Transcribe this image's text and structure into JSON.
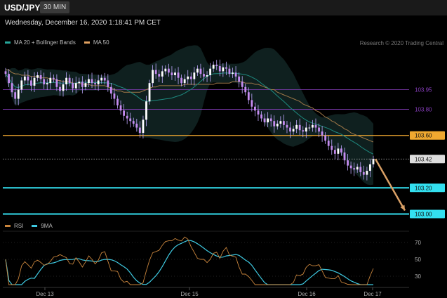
{
  "header": {
    "symbol": "USD/JPY",
    "timeframe": "30 MIN",
    "timestamp": "Wednesday, December 16, 2020 1:18:41 PM CET"
  },
  "legend_main": [
    {
      "label": "MA 20 + Bollinger Bands",
      "color": "#26a69a"
    },
    {
      "label": "MA 50",
      "color": "#e0a060"
    }
  ],
  "legend_rsi": [
    {
      "label": "RSI",
      "color": "#c8843c"
    },
    {
      "label": "9MA",
      "color": "#3ec8e0"
    }
  ],
  "credit": "Research © 2020 Trading Central",
  "chart_data": [
    {
      "type": "candlestick",
      "symbol": "USD/JPY",
      "x_ticks": [
        "Dec 13",
        "Dec 15",
        "Dec 16",
        "Dec 17"
      ],
      "ylim": [
        102.96,
        104.28
      ],
      "levels": [
        {
          "value": 103.95,
          "label": "103.95",
          "color": "#8a3fc0",
          "style": "thin"
        },
        {
          "value": 103.8,
          "label": "103.80",
          "color": "#8a3fc0",
          "style": "thin"
        },
        {
          "value": 103.6,
          "label": "103.60",
          "color": "#f0a830",
          "style": "medium",
          "label_bg": "#f0a830"
        },
        {
          "value": 103.42,
          "label": "103.42",
          "color": "#bbbbbb",
          "style": "dotted",
          "label_bg": "#dddddd"
        },
        {
          "value": 103.2,
          "label": "103.20",
          "color": "#33e0f0",
          "style": "thick",
          "label_bg": "#33e0f0"
        },
        {
          "value": 103.0,
          "label": "103.00",
          "color": "#33e0f0",
          "style": "thick",
          "label_bg": "#33e0f0"
        }
      ],
      "projection_arrow": {
        "from": 103.42,
        "to": 103.0,
        "color": "#d9a066"
      },
      "closes": [
        104.07,
        104.0,
        103.93,
        103.88,
        103.95,
        104.02,
        104.05,
        104.02,
        103.98,
        104.04,
        104.06,
        104.03,
        103.99,
        104.0,
        104.04,
        104.03,
        103.97,
        103.94,
        103.99,
        104.04,
        104.0,
        103.96,
        104.0,
        104.01,
        103.97,
        104.0,
        104.03,
        104.0,
        103.99,
        104.02,
        104.04,
        104.02,
        103.97,
        103.92,
        103.88,
        103.83,
        103.79,
        103.75,
        103.73,
        103.71,
        103.69,
        103.66,
        103.62,
        103.72,
        103.86,
        104.0,
        104.1,
        104.07,
        104.05,
        104.09,
        104.11,
        104.08,
        104.06,
        104.08,
        104.04,
        104.0,
        104.03,
        104.05,
        104.03,
        104.08,
        104.11,
        104.07,
        104.05,
        104.06,
        104.11,
        104.14,
        104.13,
        104.09,
        104.12,
        104.11,
        104.07,
        104.08,
        104.05,
        104.01,
        103.97,
        103.93,
        103.87,
        103.82,
        103.79,
        103.76,
        103.73,
        103.7,
        103.73,
        103.71,
        103.67,
        103.69,
        103.71,
        103.68,
        103.66,
        103.63,
        103.65,
        103.68,
        103.64,
        103.63,
        103.66,
        103.66,
        103.68,
        103.66,
        103.63,
        103.6,
        103.56,
        103.52,
        103.49,
        103.46,
        103.5,
        103.47,
        103.41,
        103.37,
        103.35,
        103.34,
        103.36,
        103.32,
        103.3,
        103.33,
        103.38,
        103.42
      ],
      "ma50": [
        104.1,
        104.1,
        104.08,
        104.07,
        104.07,
        104.06,
        104.06,
        104.06,
        104.05,
        104.05,
        104.05,
        104.04,
        104.04,
        104.04,
        104.03,
        104.03,
        104.02,
        104.02,
        104.01,
        104.01,
        104.01,
        104.0,
        104.0,
        104.0,
        103.99,
        103.99,
        103.99,
        103.98,
        103.98,
        103.98,
        103.98,
        103.98,
        103.97,
        103.96,
        103.95,
        103.94,
        103.94,
        103.93,
        103.93,
        103.93,
        103.93,
        103.93,
        103.93,
        103.94,
        103.95,
        103.96,
        103.97,
        103.97,
        103.98,
        103.98,
        103.98,
        103.98,
        103.98,
        103.98,
        103.98,
        103.98,
        103.99,
        103.99,
        103.99,
        103.99,
        103.99,
        103.99,
        103.99,
        103.99,
        103.99,
        103.99,
        104.0,
        104.0,
        104.0,
        104.0,
        104.0,
        104.01,
        104.01,
        104.01,
        104.01,
        104.0,
        104.0,
        104.0,
        103.99,
        103.99,
        103.98,
        103.97,
        103.96,
        103.95,
        103.95,
        103.93,
        103.92,
        103.91,
        103.9,
        103.89,
        103.88,
        103.87,
        103.86,
        103.84,
        103.83,
        103.82,
        103.81,
        103.79,
        103.78,
        103.76,
        103.74,
        103.73,
        103.71,
        103.7,
        103.68,
        103.67,
        103.65,
        103.64,
        103.62,
        103.61,
        103.6,
        103.59,
        103.58,
        103.57,
        103.56,
        103.55
      ],
      "rsi": {
        "ylim": [
          20,
          80
        ],
        "ticks": [
          70,
          50,
          30
        ],
        "rsi_color": "#c8843c",
        "ma_color": "#3ec8e0"
      }
    }
  ]
}
